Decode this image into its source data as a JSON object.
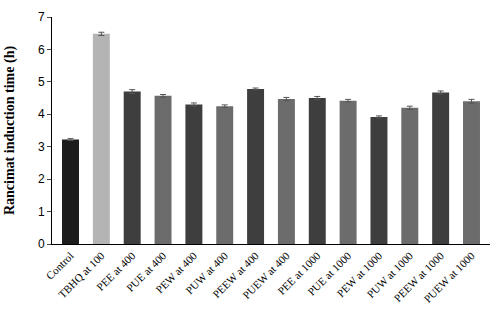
{
  "chart_data": {
    "type": "bar",
    "y_label": "Rancimat induction time (h)",
    "categories": [
      "Control",
      "TBHQ at 100",
      "PEE at 400",
      "PUE at 400",
      "PEW at 400",
      "PUW at 400",
      "PEEW at 400",
      "PUEW at 400",
      "PEE at 1000",
      "PUE at 1000",
      "PEW at 1000",
      "PUW at 1000",
      "PEEW at 1000",
      "PUEW at 1000"
    ],
    "values": [
      3.22,
      6.48,
      4.7,
      4.57,
      4.3,
      4.25,
      4.78,
      4.47,
      4.5,
      4.42,
      3.92,
      4.2,
      4.67,
      4.4
    ],
    "errors": [
      0.03,
      0.05,
      0.06,
      0.04,
      0.05,
      0.04,
      0.03,
      0.05,
      0.05,
      0.04,
      0.03,
      0.05,
      0.05,
      0.06
    ],
    "colors": [
      "#1c1c1c",
      "#b4b4b4",
      "#3e3e3e",
      "#6c6c6c",
      "#3e3e3e",
      "#6c6c6c",
      "#3e3e3e",
      "#6c6c6c",
      "#3e3e3e",
      "#6c6c6c",
      "#3e3e3e",
      "#6c6c6c",
      "#3e3e3e",
      "#6c6c6c"
    ],
    "ylim": [
      0,
      7
    ],
    "yticks": [
      0,
      1,
      2,
      3,
      4,
      5,
      6,
      7
    ],
    "grid": false
  }
}
